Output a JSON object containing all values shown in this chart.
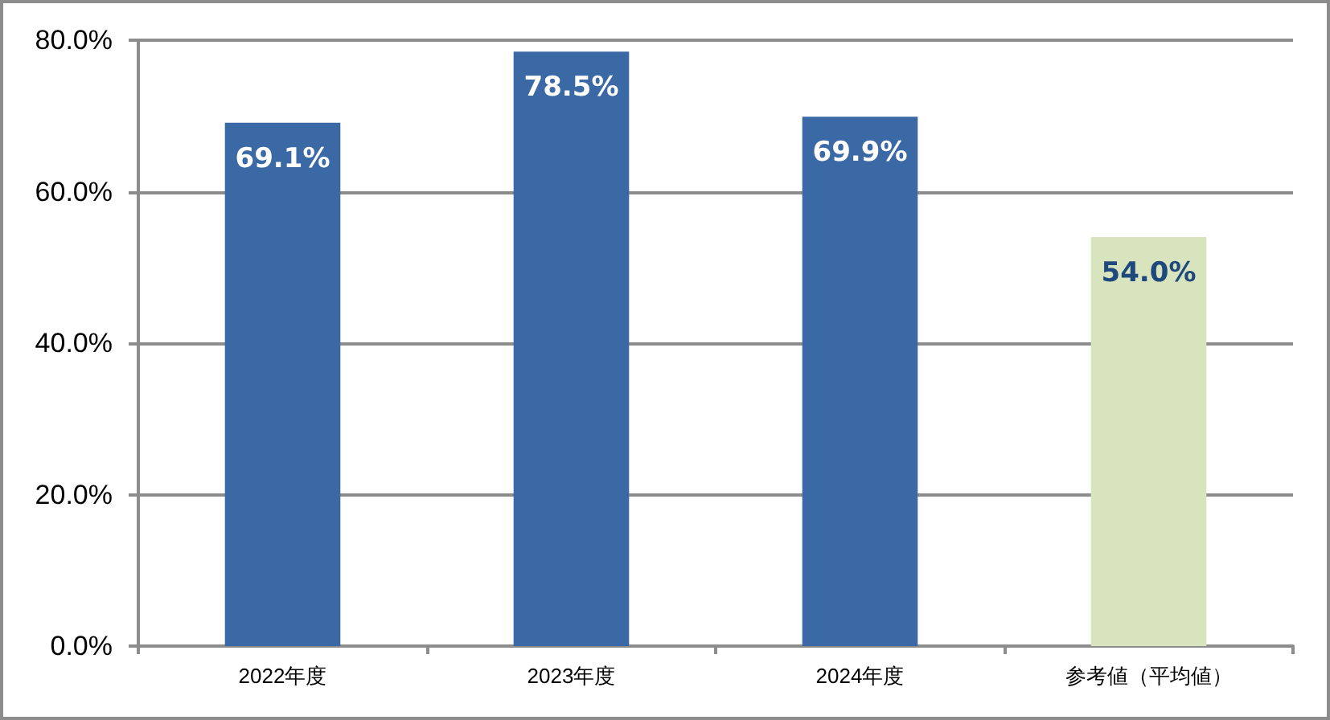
{
  "chart_data": {
    "type": "bar",
    "categories": [
      "2022年度",
      "2023年度",
      "2024年度",
      "参考値（平均値）"
    ],
    "values": [
      69.1,
      78.5,
      69.9,
      54.0
    ],
    "colors": [
      "#3a69a6",
      "#3a69a6",
      "#3a69a6",
      "#d7e4bd"
    ],
    "value_labels": [
      "69.1%",
      "78.5%",
      "69.9%",
      "54.0%"
    ],
    "ylim": [
      0,
      80
    ],
    "yticks": [
      {
        "value": 0,
        "label": "0.0%"
      },
      {
        "value": 20,
        "label": "20.0%"
      },
      {
        "value": 40,
        "label": "40.0%"
      },
      {
        "value": 60,
        "label": "60.0%"
      },
      {
        "value": 80,
        "label": "80.0%"
      }
    ],
    "grid": "y"
  }
}
